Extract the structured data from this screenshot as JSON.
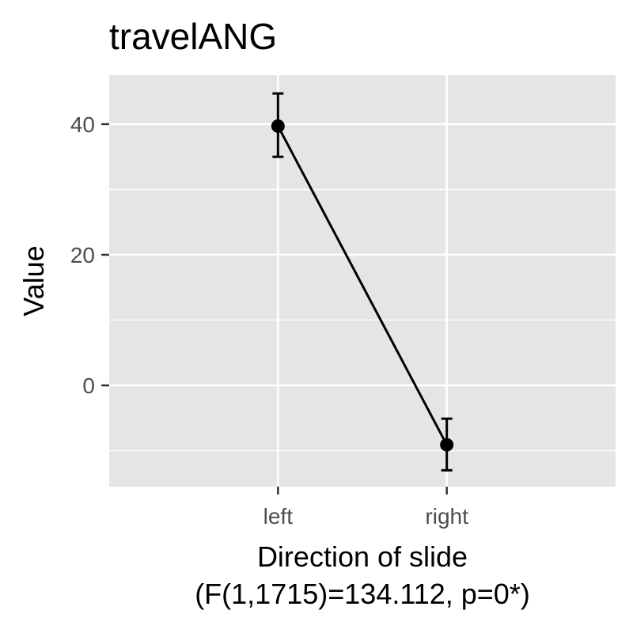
{
  "chart_data": {
    "type": "line",
    "title": "travelANG",
    "xlabel": "Direction of slide",
    "xlabel_sub": "(F(1,1715)=134.112, p=0*)",
    "ylabel": "Value",
    "categories": [
      "left",
      "right"
    ],
    "series": [
      {
        "values": [
          39.7,
          -9.1
        ],
        "error_low": [
          35.0,
          -13.0
        ],
        "error_high": [
          44.7,
          -5.1
        ]
      }
    ],
    "ylim": [
      -15.5,
      47.5
    ],
    "y_ticks": [
      0,
      20,
      40
    ],
    "y_tick_labels": [
      "0",
      "20",
      "40"
    ],
    "grid": true,
    "legend": "none",
    "colors": {
      "panel_background": "#e5e5e5",
      "grid_line": "#ffffff",
      "series_line": "#000000",
      "tick_mark": "#333333"
    }
  }
}
